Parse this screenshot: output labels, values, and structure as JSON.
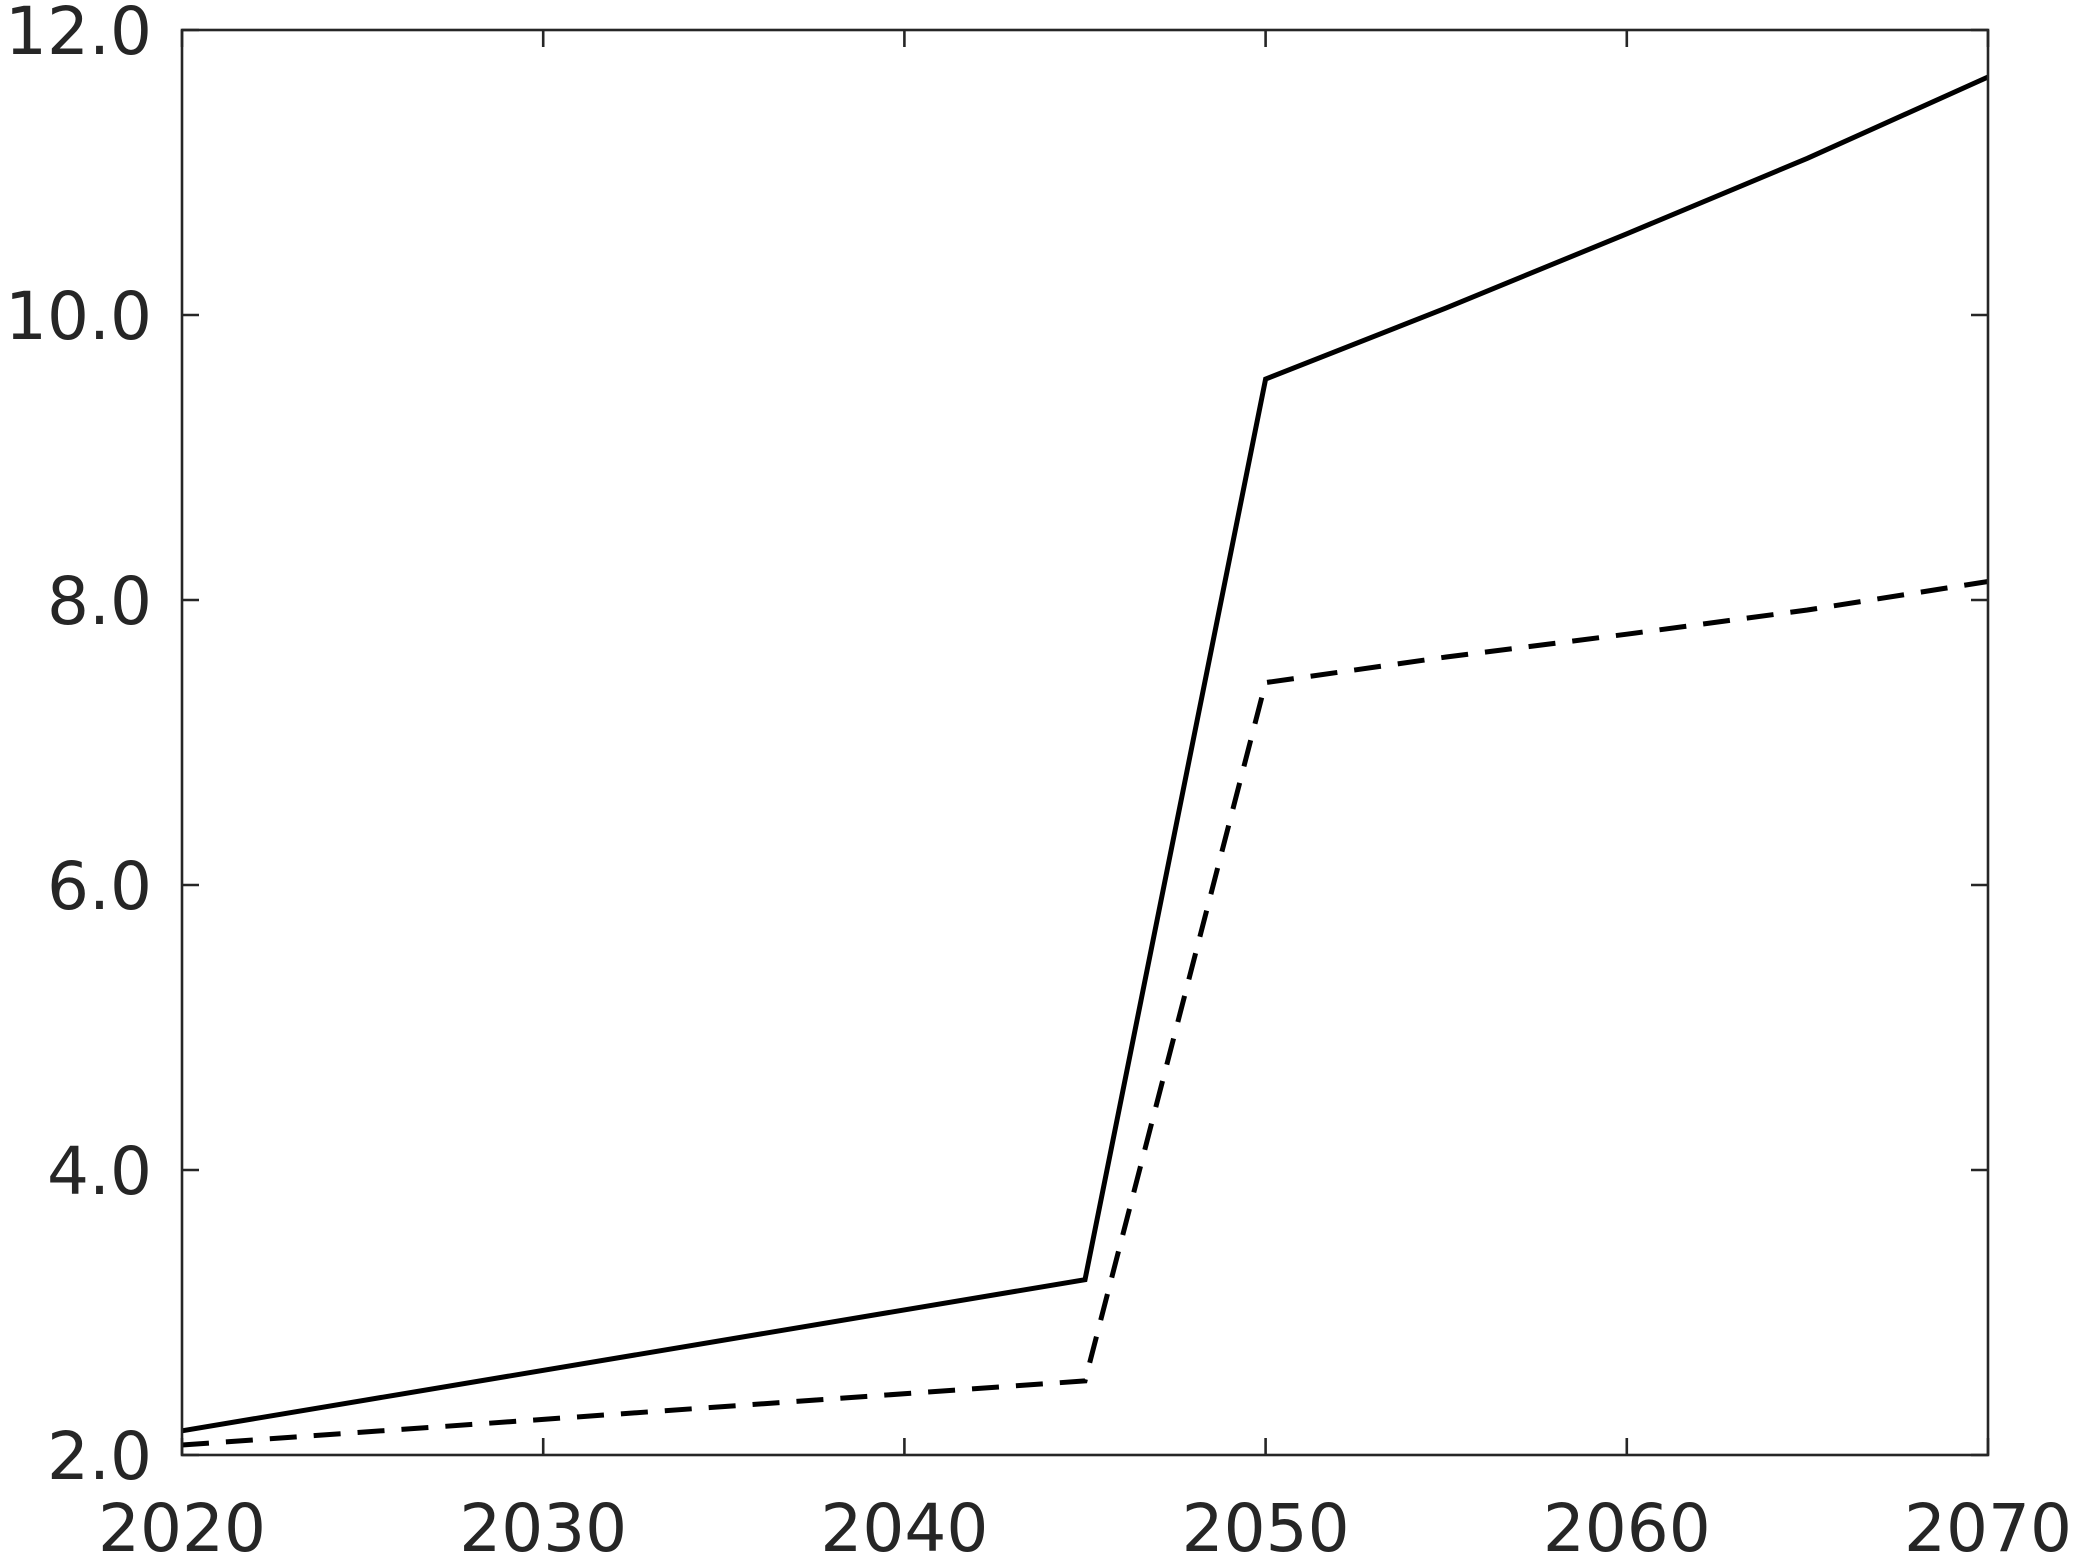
{
  "chart_data": {
    "type": "line",
    "title": "",
    "xlabel": "",
    "ylabel": "",
    "xlim": [
      2020,
      2070
    ],
    "ylim": [
      2.0,
      12.0
    ],
    "xticks": [
      2020,
      2030,
      2040,
      2050,
      2060,
      2070
    ],
    "yticks": [
      2.0,
      4.0,
      6.0,
      8.0,
      10.0,
      12.0
    ],
    "xtick_labels": [
      "2020",
      "2030",
      "2040",
      "2050",
      "2060",
      "2070"
    ],
    "ytick_labels": [
      "2.0",
      "4.0",
      "6.0",
      "8.0",
      "10.0",
      "12.0"
    ],
    "grid": false,
    "legend": "none",
    "series": [
      {
        "style": "solid",
        "color": "#000000",
        "x": [
          2020,
          2045,
          2050,
          2055,
          2060,
          2065,
          2070
        ],
        "y": [
          2.17,
          3.23,
          9.55,
          10.05,
          10.57,
          11.1,
          11.67
        ]
      },
      {
        "style": "dashed",
        "color": "#000000",
        "x": [
          2020,
          2045,
          2050,
          2055,
          2060,
          2065,
          2070
        ],
        "y": [
          2.07,
          2.52,
          7.42,
          7.6,
          7.76,
          7.93,
          8.13
        ]
      }
    ]
  }
}
